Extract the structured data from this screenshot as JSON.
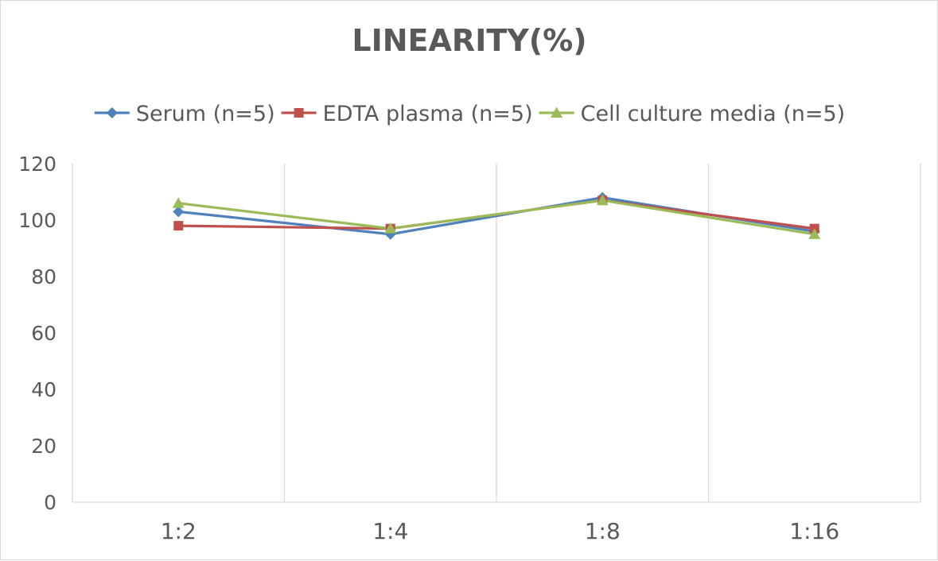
{
  "chart_data": {
    "type": "line",
    "title": "LINEARITY(%)",
    "xlabel": "",
    "ylabel": "",
    "categories": [
      "1:2",
      "1:4",
      "1:8",
      "1:16"
    ],
    "ylim": [
      0,
      120
    ],
    "yticks": [
      "0",
      "20",
      "40",
      "60",
      "80",
      "100",
      "120"
    ],
    "grid": "vertical",
    "legend_position": "top",
    "series": [
      {
        "name": "Serum (n=5)",
        "values": [
          103,
          95,
          108,
          96
        ],
        "color": "#4f81bd",
        "marker": "diamond"
      },
      {
        "name": "EDTA plasma (n=5)",
        "values": [
          98,
          97,
          107,
          97
        ],
        "color": "#c0504d",
        "marker": "square"
      },
      {
        "name": "Cell culture media (n=5)",
        "values": [
          106,
          97,
          107,
          95
        ],
        "color": "#9bbb59",
        "marker": "triangle"
      }
    ]
  }
}
